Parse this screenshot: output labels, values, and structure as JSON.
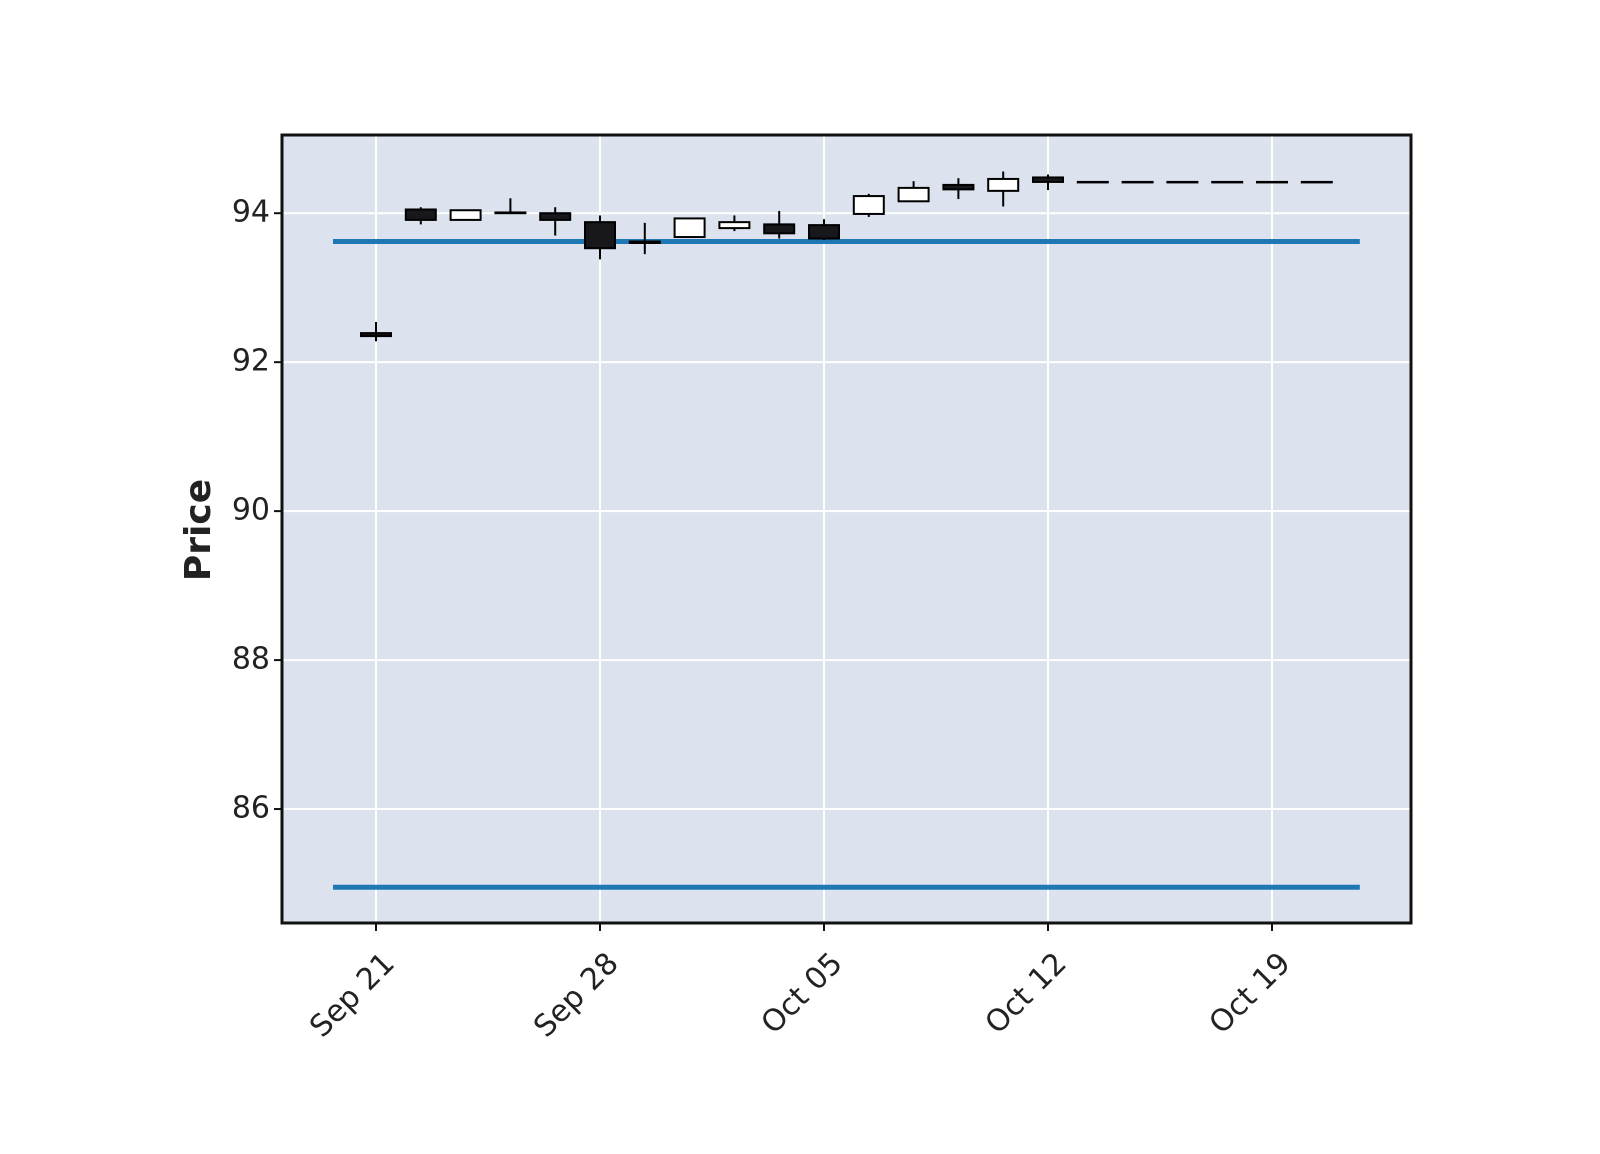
{
  "chart_data": {
    "type": "candlestick",
    "ylabel": "Price",
    "categories": [
      "Sep 21",
      null,
      null,
      null,
      null,
      "Sep 28",
      null,
      null,
      null,
      null,
      "Oct 05",
      null,
      null,
      null,
      null,
      "Oct 12",
      null,
      null,
      null,
      null,
      "Oct 19",
      null
    ],
    "open": [
      92.39,
      94.05,
      93.91,
      94.01,
      94.0,
      93.88,
      93.6,
      93.68,
      93.8,
      93.85,
      93.84,
      93.99,
      94.16,
      94.38,
      94.3,
      94.48,
      94.42,
      94.42,
      94.42,
      94.42,
      94.42,
      94.42
    ],
    "high": [
      92.54,
      94.08,
      94.05,
      94.2,
      94.08,
      93.97,
      93.87,
      93.93,
      93.97,
      94.03,
      93.92,
      94.26,
      94.43,
      94.47,
      94.56,
      94.52,
      94.42,
      94.42,
      94.42,
      94.42,
      94.42,
      94.42
    ],
    "low": [
      92.28,
      93.85,
      93.91,
      94.0,
      93.7,
      93.38,
      93.45,
      93.68,
      93.76,
      93.66,
      93.64,
      93.95,
      94.16,
      94.19,
      94.09,
      94.31,
      94.42,
      94.42,
      94.42,
      94.42,
      94.42,
      94.42
    ],
    "close": [
      92.35,
      93.91,
      94.04,
      94.0,
      93.91,
      93.53,
      93.62,
      93.93,
      93.88,
      93.73,
      93.66,
      94.23,
      94.34,
      94.32,
      94.46,
      94.42,
      94.42,
      94.42,
      94.42,
      94.42,
      94.42,
      94.42
    ],
    "up_color": "#ffffff",
    "down_color": "#17171c",
    "hlines": [
      {
        "value": 93.62,
        "color": "#1f77b4"
      },
      {
        "value": 84.95,
        "color": "#1f77b4"
      }
    ],
    "ylim": [
      84.47,
      95.05
    ],
    "yticks": [
      86,
      88,
      90,
      92,
      94
    ],
    "grid": true
  }
}
